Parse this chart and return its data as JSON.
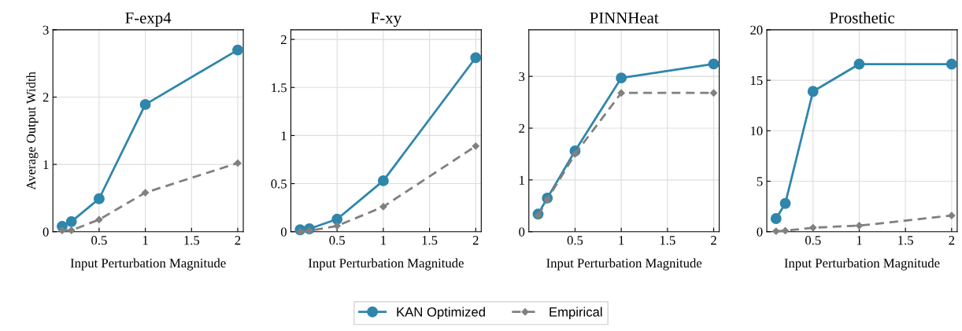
{
  "chart_data": [
    {
      "type": "line",
      "title": "F-exp4",
      "xlabel": "Input Perturbation Magnitude",
      "ylabel": "Average Output Width",
      "x": [
        0.1,
        0.2,
        0.5,
        1,
        2
      ],
      "xlim": [
        0.0,
        2.06
      ],
      "xticks": [
        0.5,
        1,
        1.5,
        2
      ],
      "ylim": [
        0,
        3
      ],
      "yticks": [
        0,
        1,
        2,
        3
      ],
      "grid": true,
      "legend": "bottom",
      "series": [
        {
          "name": "KAN Optimized",
          "color": "#2e86ab",
          "marker": "circle",
          "line_style": "solid",
          "values": [
            0.08,
            0.15,
            0.49,
            1.89,
            2.7
          ]
        },
        {
          "name": "Empirical",
          "color": "#808080",
          "marker": "diamond",
          "line_style": "dashed",
          "values": [
            0.02,
            0.02,
            0.18,
            0.58,
            1.02
          ]
        }
      ]
    },
    {
      "type": "line",
      "title": "F-xy",
      "xlabel": "Input Perturbation Magnitude",
      "x": [
        0.1,
        0.2,
        0.5,
        1,
        2
      ],
      "xlim": [
        0.0,
        2.06
      ],
      "xticks": [
        0.5,
        1,
        1.5,
        2
      ],
      "ylim": [
        0,
        2.1
      ],
      "yticks": [
        0,
        0.5,
        1,
        1.5,
        2
      ],
      "grid": true,
      "series": [
        {
          "color": "#2e86ab",
          "marker": "circle",
          "line_style": "solid",
          "values": [
            0.02,
            0.03,
            0.13,
            0.53,
            1.81
          ]
        },
        {
          "color": "#808080",
          "marker": "diamond",
          "line_style": "dashed",
          "values": [
            0.0,
            0.01,
            0.06,
            0.26,
            0.89
          ]
        }
      ]
    },
    {
      "type": "line",
      "title": "PINNHeat",
      "xlabel": "Input Perturbation Magnitude",
      "x": [
        0.1,
        0.2,
        0.5,
        1,
        2
      ],
      "xlim": [
        0.0,
        2.06
      ],
      "xticks": [
        0.5,
        1,
        1.5,
        2
      ],
      "ylim": [
        0,
        3.9
      ],
      "yticks": [
        0,
        1,
        2,
        3
      ],
      "grid": true,
      "series": [
        {
          "color": "#2e86ab",
          "marker": "circle",
          "line_style": "solid",
          "values": [
            0.34,
            0.65,
            1.56,
            2.97,
            3.24
          ]
        },
        {
          "color": "#808080",
          "marker": "diamond",
          "line_style": "dashed",
          "values": [
            0.31,
            0.62,
            1.5,
            2.68,
            2.68
          ]
        }
      ]
    },
    {
      "type": "line",
      "title": "Prosthetic",
      "xlabel": "Input Perturbation Magnitude",
      "x": [
        0.1,
        0.2,
        0.5,
        1,
        2
      ],
      "xlim": [
        0.0,
        2.06
      ],
      "xticks": [
        0.5,
        1,
        1.5,
        2
      ],
      "ylim": [
        0,
        20
      ],
      "yticks": [
        0,
        5,
        10,
        15,
        20
      ],
      "grid": true,
      "series": [
        {
          "color": "#2e86ab",
          "marker": "circle",
          "line_style": "solid",
          "values": [
            1.3,
            2.8,
            13.9,
            16.6,
            16.6
          ]
        },
        {
          "color": "#808080",
          "marker": "diamond",
          "line_style": "dashed",
          "values": [
            0.05,
            0.1,
            0.4,
            0.6,
            1.6
          ]
        }
      ]
    }
  ]
}
